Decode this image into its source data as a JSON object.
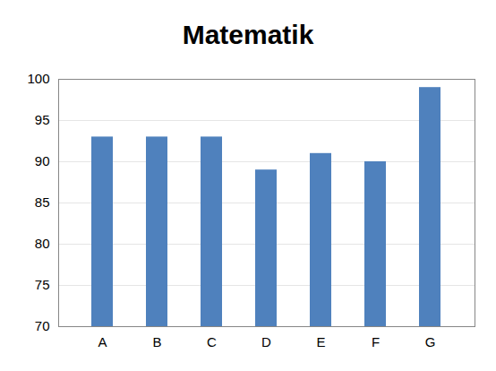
{
  "chart_data": {
    "type": "bar",
    "title": "Matematik",
    "categories": [
      "A",
      "B",
      "C",
      "D",
      "E",
      "F",
      "G"
    ],
    "values": [
      93,
      93,
      93,
      89,
      91,
      90,
      99
    ],
    "color": "#4f81bd",
    "ylim": [
      70,
      100
    ],
    "yticks": [
      70,
      75,
      80,
      85,
      90,
      95,
      100
    ],
    "grid": true
  }
}
